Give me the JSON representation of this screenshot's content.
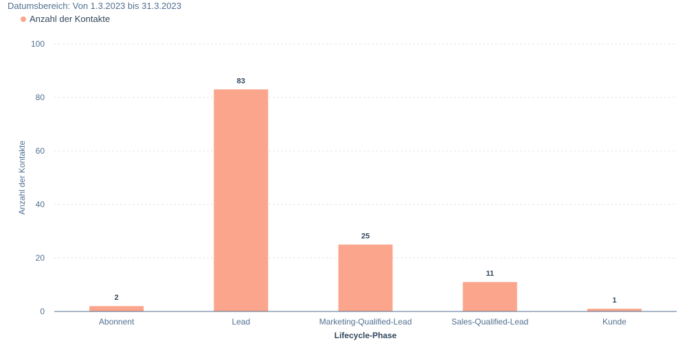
{
  "subtitle": "Datumsbereich: Von 1.3.2023 bis 31.3.2023",
  "colors": {
    "bar": "#fba68c",
    "grid": "#dfe3eb",
    "axis": "#516f90"
  },
  "chart_data": {
    "type": "bar",
    "categories": [
      "Abonnent",
      "Lead",
      "Marketing-Qualified-Lead",
      "Sales-Qualified-Lead",
      "Kunde"
    ],
    "series": [
      {
        "name": "Anzahl der Kontakte",
        "values": [
          2,
          83,
          25,
          11,
          1
        ]
      }
    ],
    "xlabel": "Lifecycle-Phase",
    "ylabel": "Anzahl der Kontakte",
    "ylim": [
      0,
      100
    ],
    "yticks": [
      0,
      20,
      40,
      60,
      80,
      100
    ],
    "grid": true,
    "legend": "top-left"
  }
}
